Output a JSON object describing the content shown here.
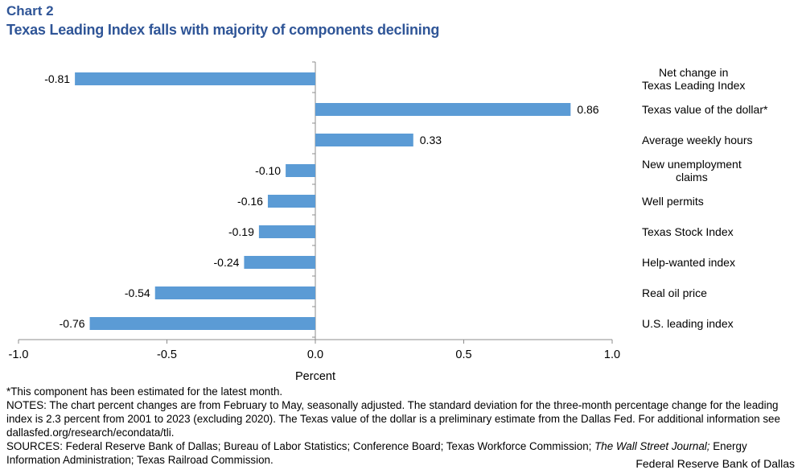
{
  "header": {
    "chart_label": "Chart 2",
    "title": "Texas Leading Index falls with majority of components declining"
  },
  "chart_data": {
    "type": "bar",
    "orientation": "horizontal",
    "title": "Texas Leading Index falls with majority of components declining",
    "xlabel": "Percent",
    "ylabel": "",
    "xlim": [
      -1.0,
      1.0
    ],
    "xticks": [
      "-1.0",
      "-0.5",
      "0.0",
      "0.5",
      "1.0"
    ],
    "xtick_values": [
      -1.0,
      -0.5,
      0.0,
      0.5,
      1.0
    ],
    "grid": false,
    "legend": "none",
    "bar_color": "#5b9bd5",
    "categories": [
      [
        "Net change in",
        "Texas Leading Index"
      ],
      [
        "Texas value of the dollar*"
      ],
      [
        "Average weekly hours"
      ],
      [
        "New unemployment",
        "claims"
      ],
      [
        "Well permits"
      ],
      [
        "Texas Stock Index"
      ],
      [
        "Help-wanted index"
      ],
      [
        "Real oil price"
      ],
      [
        "U.S. leading index"
      ]
    ],
    "values": [
      -0.81,
      0.86,
      0.33,
      -0.1,
      -0.16,
      -0.19,
      -0.24,
      -0.54,
      -0.76
    ],
    "value_labels": [
      "-0.81",
      "0.86",
      "0.33",
      "-0.10",
      "-0.16",
      "-0.19",
      "-0.24",
      "-0.54",
      "-0.76"
    ]
  },
  "notes": {
    "footnote": "*This component has been estimated for the latest month.",
    "notes": "NOTES: The chart percent changes are from February to May, seasonally adjusted. The standard deviation for the three-month percentage change for the leading index is 2.3 percent from 2001 to 2023 (excluding 2020). The Texas value of the dollar is a preliminary estimate from the Dallas Fed. For additional information see dallasfed.org/research/econdata/tli.",
    "sources_prefix": "SOURCES: Federal Reserve Bank of Dallas; Bureau of Labor Statistics; Conference Board; Texas Workforce Commission; ",
    "sources_italic": "The Wall Street Journal;",
    "sources_suffix": " Energy Information Administration; Texas Railroad Commission."
  },
  "credit": "Federal Reserve Bank of Dallas"
}
